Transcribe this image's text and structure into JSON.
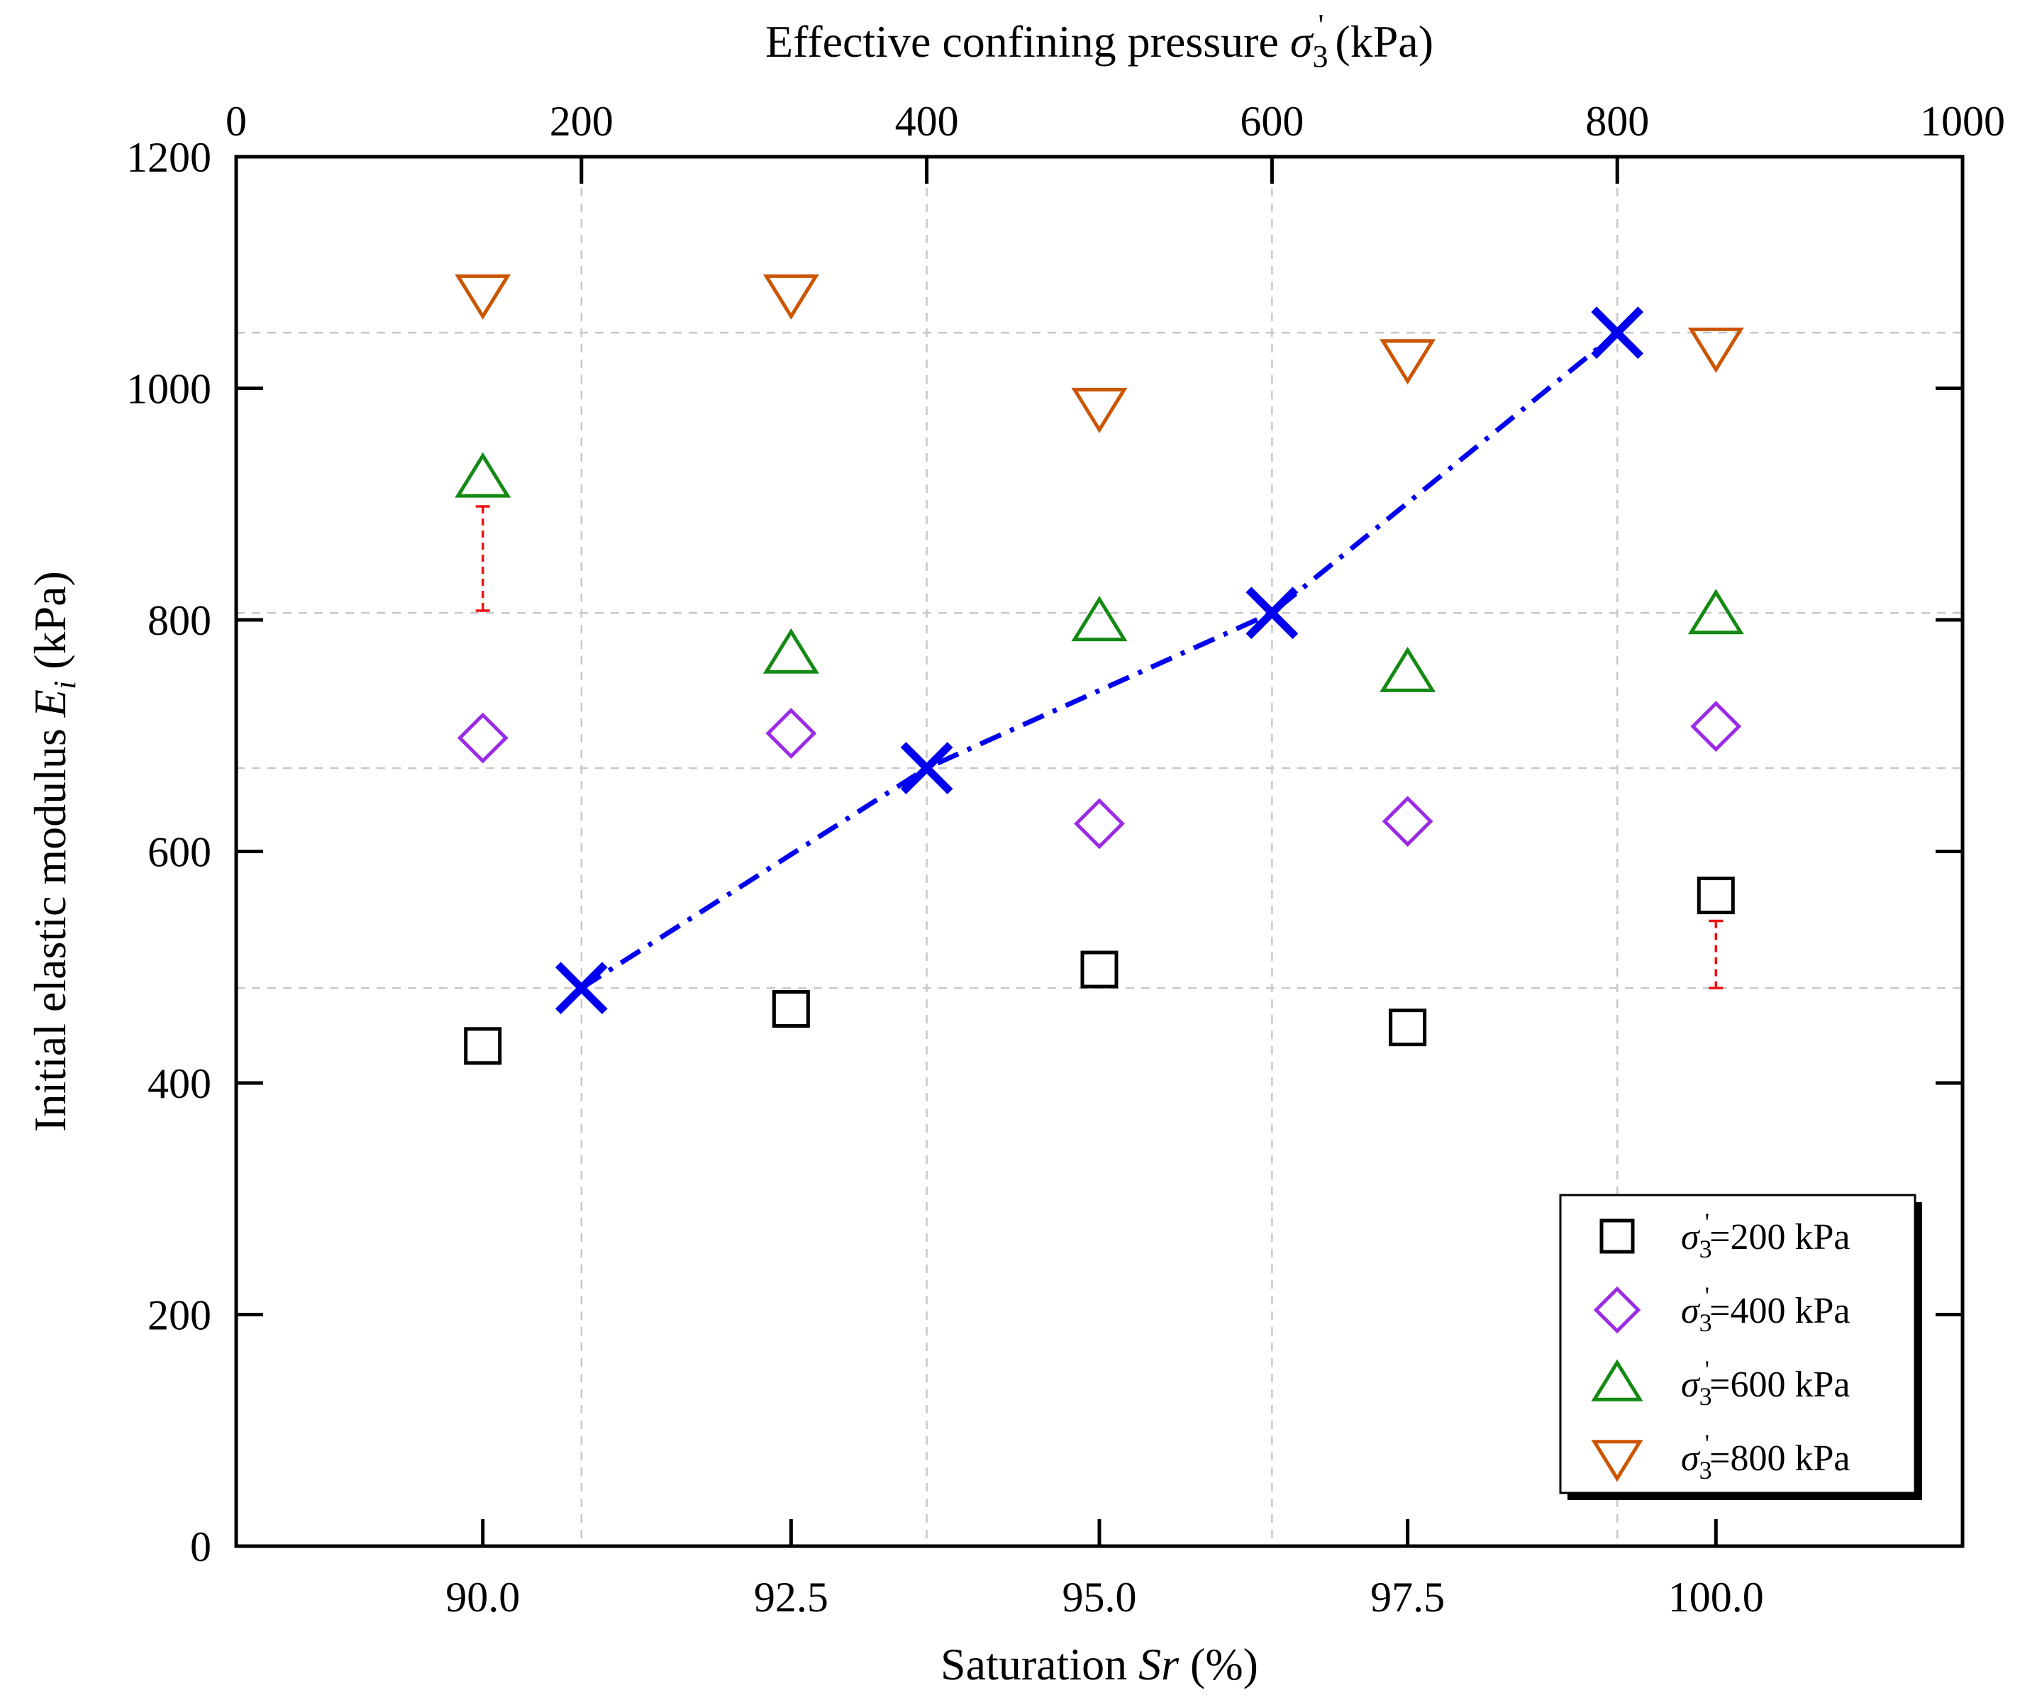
{
  "chart_data": {
    "type": "scatter",
    "bottom_axis": {
      "label": "Saturation Sr (%)",
      "label_parts": [
        "Saturation ",
        "Sr",
        " (%)"
      ],
      "range": [
        88.0,
        102.0
      ],
      "ticks": [
        90.0,
        92.5,
        95.0,
        97.5,
        100.0
      ],
      "tick_labels": [
        "90.0",
        "92.5",
        "95.0",
        "97.5",
        "100.0"
      ]
    },
    "top_axis": {
      "label": "Effective confining pressure σ3' (kPa)",
      "label_parts": [
        "Effective confining pressure ",
        "σ",
        "3",
        "'",
        " (kPa)"
      ],
      "range": [
        0,
        1000
      ],
      "ticks": [
        0,
        200,
        400,
        600,
        800,
        1000
      ],
      "tick_labels": [
        "0",
        "200",
        "400",
        "600",
        "800",
        "1000"
      ]
    },
    "left_axis": {
      "label": "Initial elastic modulus Ei (kPa)",
      "label_parts": [
        "Initial elastic modulus ",
        "E",
        "i",
        " (kPa)"
      ],
      "range": [
        0,
        1200
      ],
      "ticks": [
        0,
        200,
        400,
        600,
        800,
        1000,
        1200
      ],
      "tick_labels": [
        "0",
        "200",
        "400",
        "600",
        "800",
        "1000",
        "1200"
      ]
    },
    "grid": {
      "vertical_at_pressure": [
        200,
        400,
        600,
        800
      ],
      "horizontal_at_modulus": [
        482,
        672,
        806,
        1048
      ]
    },
    "series": [
      {
        "name": "σ3'=200 kPa",
        "label_parts": [
          "σ",
          "3",
          "'",
          "=200 kPa"
        ],
        "marker": "square",
        "color": "#000000",
        "x": [
          90.0,
          92.5,
          95.0,
          97.5,
          100.0
        ],
        "y": [
          432,
          464,
          498,
          448,
          562
        ]
      },
      {
        "name": "σ3'=400 kPa",
        "label_parts": [
          "σ",
          "3",
          "'",
          "=400 kPa"
        ],
        "marker": "diamond",
        "color": "#9b2be6",
        "x": [
          90.0,
          92.5,
          95.0,
          97.5,
          100.0
        ],
        "y": [
          698,
          702,
          624,
          626,
          708
        ]
      },
      {
        "name": "σ3'=600 kPa",
        "label_parts": [
          "σ",
          "3",
          "'",
          "=600 kPa"
        ],
        "marker": "triangle-up",
        "color": "#138a13",
        "x": [
          90.0,
          92.5,
          95.0,
          97.5,
          100.0
        ],
        "y": [
          922,
          770,
          798,
          754,
          804
        ]
      },
      {
        "name": "σ3'=800 kPa",
        "label_parts": [
          "σ",
          "3",
          "'",
          "=800 kPa"
        ],
        "marker": "triangle-down",
        "color": "#cc5500",
        "x": [
          90.0,
          92.5,
          95.0,
          97.5,
          100.0
        ],
        "y": [
          1082,
          1082,
          984,
          1026,
          1036
        ]
      }
    ],
    "trend": {
      "marker": "x",
      "color": "#0000ee",
      "line_style": "dash-dot",
      "pressure": [
        200,
        400,
        600,
        800
      ],
      "y": [
        482,
        672,
        806,
        1048
      ]
    },
    "error_bars": [
      {
        "x": 90.0,
        "y_low": 808,
        "y_high": 898
      },
      {
        "x": 100.0,
        "y_low": 482,
        "y_high": 540
      }
    ],
    "error_bar_color": "#ee1111",
    "legend_position": "bottom-right"
  }
}
